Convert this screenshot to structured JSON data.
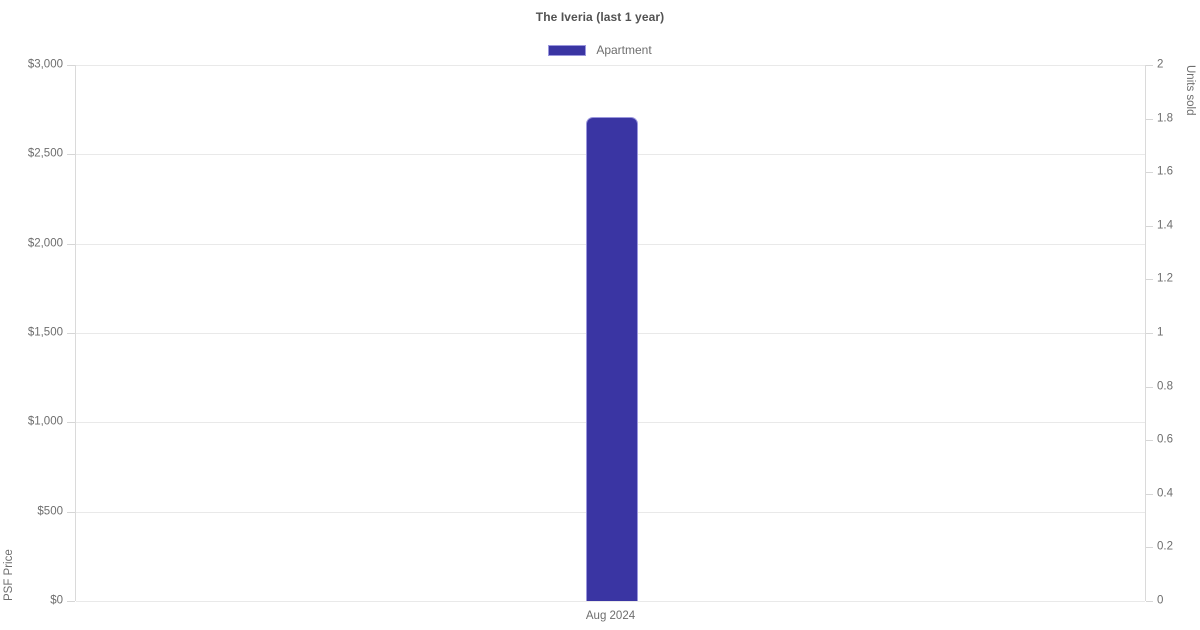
{
  "chart": {
    "title": "The Iveria (last 1 year)",
    "legend": [
      {
        "label": "Apartment",
        "color": "#3a35a3",
        "border_color": "#9b97dd"
      }
    ],
    "y_axis_left": {
      "title": "PSF Price",
      "tick_labels": [
        "$3,000",
        "$2,500",
        "$2,000",
        "$1,500",
        "$1,000",
        "$500",
        "$0"
      ]
    },
    "y_axis_right": {
      "title": "Units sold",
      "tick_labels": [
        "2",
        "1.8",
        "1.6",
        "1.4",
        "1.2",
        "1",
        "0.8",
        "0.6",
        "0.4",
        "0.2",
        "0"
      ]
    },
    "x_axis": {
      "labels": [
        "Aug 2024"
      ]
    }
  },
  "chart_data": {
    "type": "bar",
    "title": "The Iveria (last 1 year)",
    "categories": [
      "Aug 2024"
    ],
    "series": [
      {
        "name": "Apartment",
        "axis": "left",
        "values": [
          2710
        ],
        "color": "#3a35a3",
        "border_color": "#9b97dd"
      }
    ],
    "ylabel_left": "PSF Price",
    "ylabel_right": "Units sold",
    "ylim_left": [
      0,
      3000
    ],
    "ytick_step_left": 500,
    "ylim_right": [
      0,
      2
    ],
    "ytick_step_right": 0.2,
    "grid": "horizontal-left-axis-only",
    "legend_position": "top-center",
    "background": "#ffffff"
  }
}
